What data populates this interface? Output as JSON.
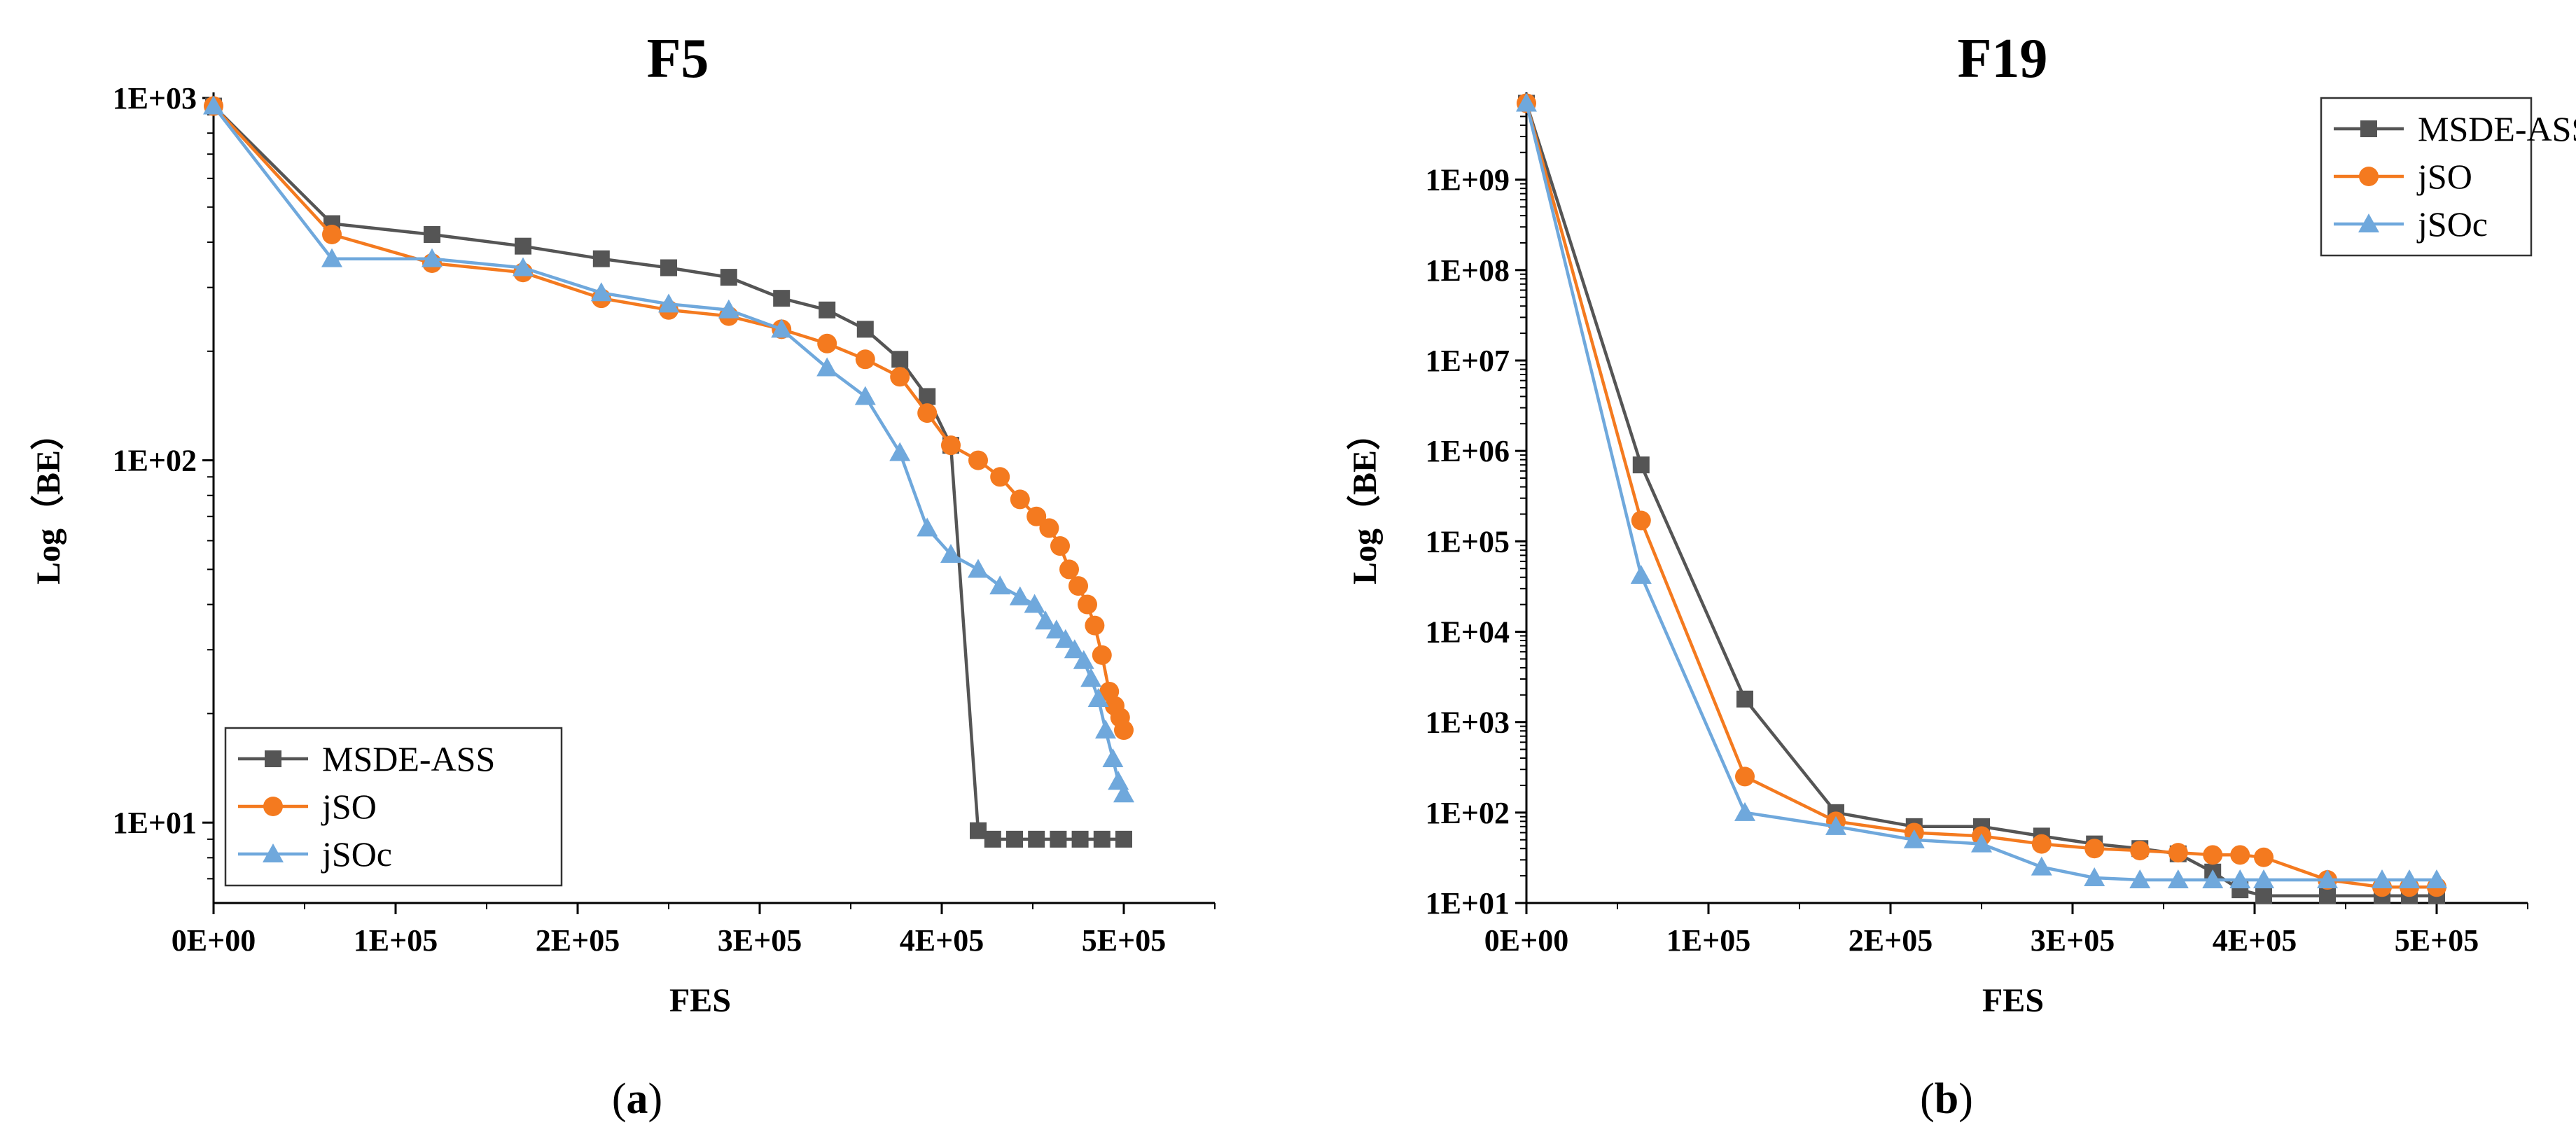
{
  "chart_data": [
    {
      "type": "line",
      "title": "F5",
      "xlabel": "FES",
      "ylabel": "Log（BE）",
      "caption": "(a)",
      "caption_letter": "a",
      "yscale": "log",
      "xlim": [
        0,
        550000
      ],
      "ylim": [
        6,
        1000
      ],
      "xticks": [
        0,
        100000,
        200000,
        300000,
        400000,
        500000
      ],
      "xtick_labels": [
        "0E+00",
        "1E+05",
        "2E+05",
        "3E+05",
        "4E+05",
        "5E+05"
      ],
      "yticks": [
        10,
        100,
        1000
      ],
      "ytick_labels": [
        "1E+01",
        "1E+02",
        "1E+03"
      ],
      "legend_position": "bottom-left",
      "series": [
        {
          "name": "MSDE-ASS",
          "color": "#555555",
          "marker": "square",
          "x": [
            0,
            65000,
            120000,
            170000,
            213000,
            250000,
            283000,
            312000,
            337000,
            358000,
            377000,
            392000,
            405000,
            420000,
            428000,
            440000,
            452000,
            464000,
            476000,
            488000,
            500000
          ],
          "y": [
            950,
            450,
            420,
            390,
            360,
            340,
            320,
            280,
            260,
            230,
            190,
            150,
            110,
            9.5,
            9,
            9,
            9,
            9,
            9,
            9,
            9
          ]
        },
        {
          "name": "jSO",
          "color": "#f47a1f",
          "marker": "circle",
          "x": [
            0,
            65000,
            120000,
            170000,
            213000,
            250000,
            283000,
            312000,
            337000,
            358000,
            377000,
            392000,
            405000,
            420000,
            432000,
            443000,
            452000,
            459000,
            465000,
            470000,
            475000,
            480000,
            484000,
            488000,
            492000,
            495000,
            498000,
            500000
          ],
          "y": [
            950,
            420,
            350,
            330,
            280,
            260,
            250,
            230,
            210,
            190,
            170,
            135,
            110,
            100,
            90,
            78,
            70,
            65,
            58,
            50,
            45,
            40,
            35,
            29,
            23,
            21,
            19.5,
            18
          ]
        },
        {
          "name": "jSOc",
          "color": "#6fa8dc",
          "marker": "triangle",
          "x": [
            0,
            65000,
            120000,
            170000,
            213000,
            250000,
            283000,
            312000,
            337000,
            358000,
            377000,
            392000,
            405000,
            420000,
            432000,
            443000,
            451000,
            457000,
            463000,
            468000,
            473000,
            478000,
            482000,
            486000,
            490000,
            494000,
            497000,
            500000
          ],
          "y": [
            950,
            360,
            360,
            340,
            290,
            270,
            260,
            230,
            180,
            150,
            105,
            65,
            55,
            50,
            45,
            42,
            40,
            36,
            34,
            32,
            30,
            28,
            25,
            22,
            18,
            15,
            13,
            12
          ]
        }
      ]
    },
    {
      "type": "line",
      "title": "F19",
      "xlabel": "FES",
      "ylabel": "Log（BE）",
      "caption": "(b)",
      "caption_letter": "b",
      "yscale": "log",
      "xlim": [
        0,
        550000
      ],
      "ylim": [
        10,
        8000000000
      ],
      "xticks": [
        0,
        100000,
        200000,
        300000,
        400000,
        500000
      ],
      "xtick_labels": [
        "0E+00",
        "1E+05",
        "2E+05",
        "3E+05",
        "4E+05",
        "5E+05"
      ],
      "yticks": [
        10,
        100,
        1000,
        10000,
        100000,
        1000000,
        10000000,
        100000000,
        1000000000
      ],
      "ytick_labels": [
        "1E+01",
        "1E+02",
        "1E+03",
        "1E+04",
        "1E+05",
        "1E+06",
        "1E+07",
        "1E+08",
        "1E+09"
      ],
      "legend_position": "top-right",
      "series": [
        {
          "name": "MSDE-ASS",
          "color": "#555555",
          "marker": "square",
          "x": [
            0,
            63000,
            120000,
            170000,
            213000,
            250000,
            283000,
            312000,
            337000,
            358000,
            377000,
            392000,
            405000,
            440000,
            470000,
            485000,
            500000
          ],
          "y": [
            7000000000,
            700000,
            1800,
            100,
            70,
            70,
            55,
            45,
            40,
            35,
            22,
            14,
            12,
            12,
            12,
            12,
            12
          ]
        },
        {
          "name": "jSO",
          "color": "#f47a1f",
          "marker": "circle",
          "x": [
            0,
            63000,
            120000,
            170000,
            213000,
            250000,
            283000,
            312000,
            337000,
            358000,
            377000,
            392000,
            405000,
            440000,
            470000,
            485000,
            500000
          ],
          "y": [
            7000000000,
            170000,
            250,
            80,
            60,
            55,
            45,
            40,
            38,
            36,
            34,
            34,
            32,
            18,
            15,
            15,
            15
          ]
        },
        {
          "name": "jSOc",
          "color": "#6fa8dc",
          "marker": "triangle",
          "x": [
            0,
            63000,
            120000,
            170000,
            213000,
            250000,
            283000,
            312000,
            337000,
            358000,
            377000,
            392000,
            405000,
            440000,
            470000,
            485000,
            500000
          ],
          "y": [
            7000000000,
            42000,
            100,
            70,
            50,
            45,
            25,
            19,
            18,
            18,
            18,
            18,
            18,
            18,
            18,
            18,
            18
          ]
        }
      ]
    }
  ]
}
